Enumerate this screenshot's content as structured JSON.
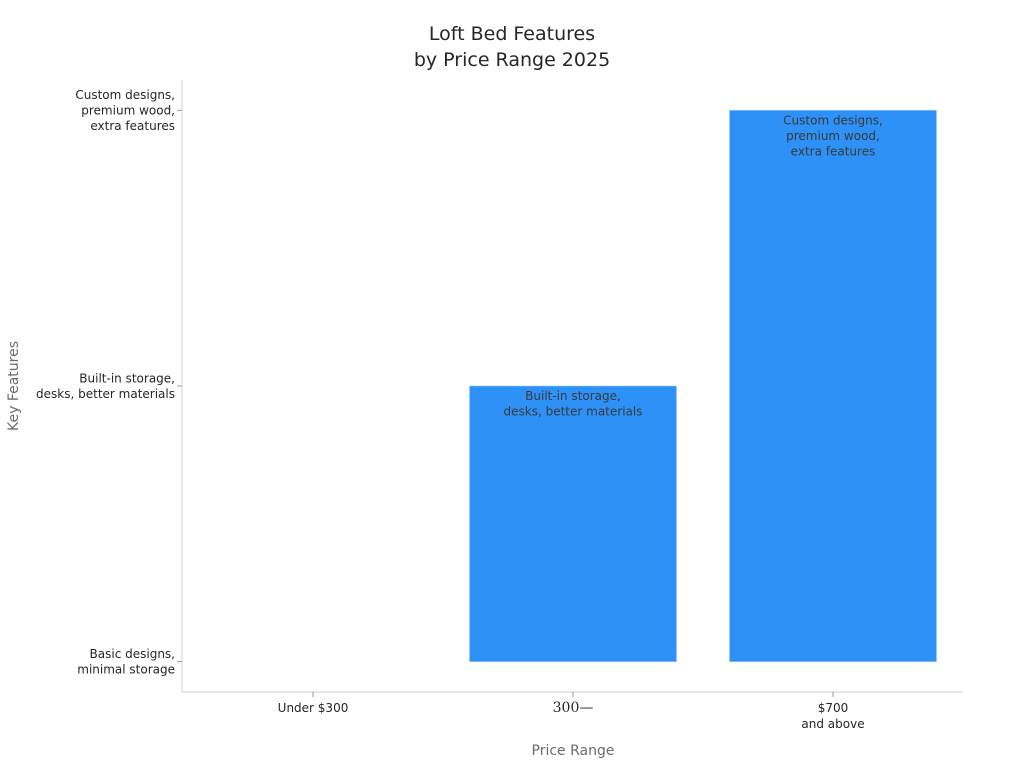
{
  "chart_data": {
    "type": "bar",
    "title": [
      "Loft Bed Features",
      "by Price Range 2025"
    ],
    "xlabel": "Price Range",
    "ylabel": "Key Features",
    "categories": [
      [
        "Under $300"
      ],
      [
        "300—"
      ],
      [
        "$700",
        "and above"
      ]
    ],
    "y_ticks": [
      {
        "value": 0,
        "label": [
          "Basic designs,",
          "minimal storage"
        ]
      },
      {
        "value": 1,
        "label": [
          "Built-in storage,",
          "desks, better materials"
        ]
      },
      {
        "value": 2,
        "label": [
          "Custom designs,",
          "premium wood,",
          "extra features"
        ]
      }
    ],
    "values": [
      0,
      1,
      2
    ],
    "bar_labels": [
      [],
      [
        "Built-in storage,",
        "desks, better materials"
      ],
      [
        "Custom designs,",
        "premium wood,",
        "extra features"
      ]
    ],
    "bar_color": "#2d91f7",
    "ylim": [
      -0.11,
      2.11
    ],
    "grid": false,
    "legend": "none"
  }
}
